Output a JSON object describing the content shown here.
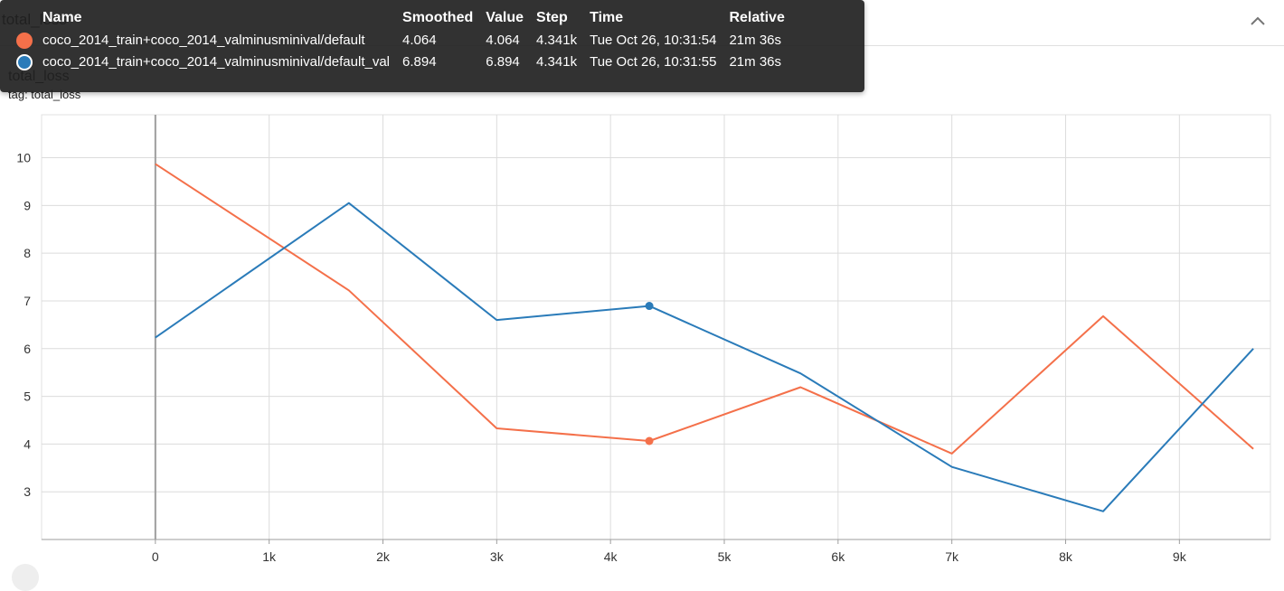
{
  "card": {
    "title": "total_loss"
  },
  "chart_header": {
    "title": "total_loss",
    "tag": "tag: total_loss"
  },
  "icons": {
    "collapse": "chevron-up-icon"
  },
  "colors": {
    "train": "#f4704a",
    "val": "#2a7bb9"
  },
  "tooltip": {
    "headers": {
      "name": "Name",
      "smoothed": "Smoothed",
      "value": "Value",
      "step": "Step",
      "time": "Time",
      "relative": "Relative"
    },
    "rows": [
      {
        "name": "coco_2014_train+coco_2014_valminusminival/default",
        "smoothed": "4.064",
        "value": "4.064",
        "step": "4.341k",
        "time": "Tue Oct 26, 10:31:54",
        "relative": "21m 36s"
      },
      {
        "name": "coco_2014_train+coco_2014_valminusminival/default_val",
        "smoothed": "6.894",
        "value": "6.894",
        "step": "4.341k",
        "time": "Tue Oct 26, 10:31:55",
        "relative": "21m 36s"
      }
    ]
  },
  "chart_data": {
    "type": "line",
    "title": "total_loss",
    "xlim": [
      -1000,
      9800
    ],
    "ylim": [
      2,
      10.9
    ],
    "grid": true,
    "x_ticks": [
      0,
      1000,
      2000,
      3000,
      4000,
      5000,
      6000,
      7000,
      8000,
      9000
    ],
    "x_tick_labels": [
      "0",
      "1k",
      "2k",
      "3k",
      "4k",
      "5k",
      "6k",
      "7k",
      "8k",
      "9k"
    ],
    "y_ticks": [
      3,
      4,
      5,
      6,
      7,
      8,
      9,
      10
    ],
    "y_tick_labels": [
      "3",
      "4",
      "5",
      "6",
      "7",
      "8",
      "9",
      "10"
    ],
    "series": [
      {
        "name": "coco_2014_train+coco_2014_valminusminival/default",
        "x": [
          0,
          1700,
          3000,
          4341,
          5670,
          7000,
          8330,
          9650
        ],
        "y": [
          9.87,
          7.22,
          4.33,
          4.064,
          5.19,
          3.8,
          6.68,
          3.9
        ]
      },
      {
        "name": "coco_2014_train+coco_2014_valminusminival/default_val",
        "x": [
          0,
          1700,
          3000,
          4341,
          5670,
          7000,
          8330,
          9650
        ],
        "y": [
          6.23,
          9.05,
          6.6,
          6.894,
          5.48,
          3.52,
          2.59,
          6.0
        ]
      }
    ],
    "highlight_x": 4341
  }
}
